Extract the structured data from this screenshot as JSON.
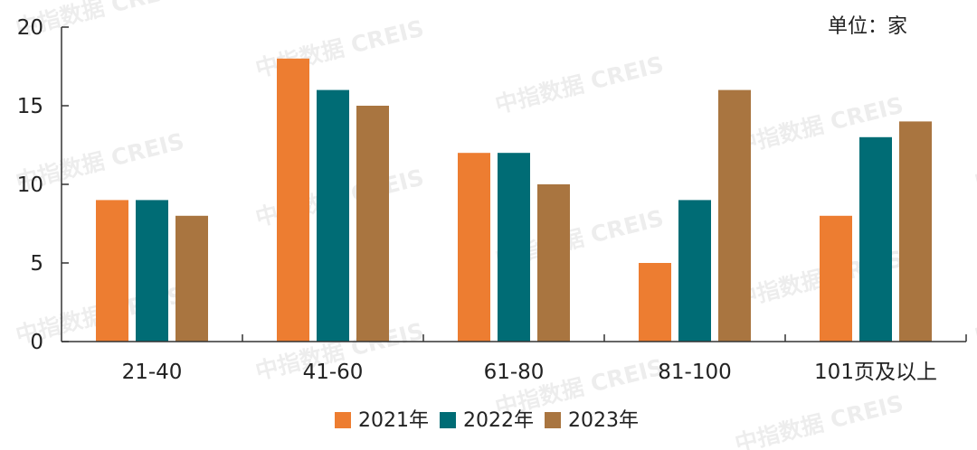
{
  "watermark": "中指数据 CREIS",
  "unit_label": "单位：家",
  "colors": {
    "2021年": "#ED7D31",
    "2022年": "#006C75",
    "2023年": "#A97540",
    "axis": "#333333",
    "text": "#222222"
  },
  "chart_data": {
    "type": "bar",
    "categories": [
      "21-40",
      "41-60",
      "61-80",
      "81-100",
      "101页及以上"
    ],
    "series": [
      {
        "name": "2021年",
        "values": [
          9,
          18,
          12,
          5,
          8
        ]
      },
      {
        "name": "2022年",
        "values": [
          9,
          16,
          12,
          9,
          13
        ]
      },
      {
        "name": "2023年",
        "values": [
          8,
          15,
          10,
          16,
          14
        ]
      }
    ],
    "yticks": [
      0,
      5,
      10,
      15,
      20
    ],
    "ylim": [
      0,
      20
    ],
    "grid": false,
    "legend": "bottom-center"
  }
}
